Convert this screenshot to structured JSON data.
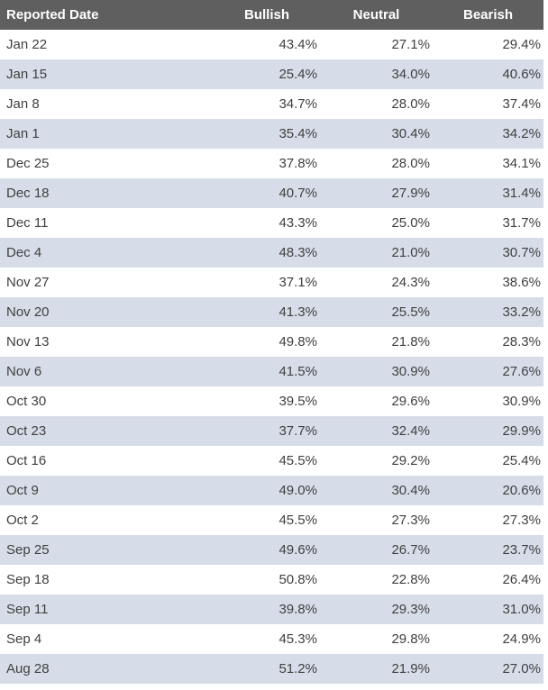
{
  "colors": {
    "header_bg": "#5f5f5f",
    "header_text": "#ffffff",
    "alt_row_bg": "#d7dde8",
    "row_bg": "#ffffff",
    "cell_text": "#3f3f3f"
  },
  "chart_data": {
    "type": "table",
    "columns": [
      "Reported Date",
      "Bullish",
      "Neutral",
      "Bearish"
    ],
    "value_format": "percent_one_decimal",
    "layout": {
      "alternating_rows": true,
      "header_style": "dark-gray-white-bold",
      "first_column_align": "left",
      "value_columns_align": "right"
    },
    "rows": [
      [
        "Jan 22",
        43.4,
        27.1,
        29.4
      ],
      [
        "Jan 15",
        25.4,
        34.0,
        40.6
      ],
      [
        "Jan 8",
        34.7,
        28.0,
        37.4
      ],
      [
        "Jan 1",
        35.4,
        30.4,
        34.2
      ],
      [
        "Dec 25",
        37.8,
        28.0,
        34.1
      ],
      [
        "Dec 18",
        40.7,
        27.9,
        31.4
      ],
      [
        "Dec 11",
        43.3,
        25.0,
        31.7
      ],
      [
        "Dec 4",
        48.3,
        21.0,
        30.7
      ],
      [
        "Nov 27",
        37.1,
        24.3,
        38.6
      ],
      [
        "Nov 20",
        41.3,
        25.5,
        33.2
      ],
      [
        "Nov 13",
        49.8,
        21.8,
        28.3
      ],
      [
        "Nov 6",
        41.5,
        30.9,
        27.6
      ],
      [
        "Oct 30",
        39.5,
        29.6,
        30.9
      ],
      [
        "Oct 23",
        37.7,
        32.4,
        29.9
      ],
      [
        "Oct 16",
        45.5,
        29.2,
        25.4
      ],
      [
        "Oct 9",
        49.0,
        30.4,
        20.6
      ],
      [
        "Oct 2",
        45.5,
        27.3,
        27.3
      ],
      [
        "Sep 25",
        49.6,
        26.7,
        23.7
      ],
      [
        "Sep 18",
        50.8,
        22.8,
        26.4
      ],
      [
        "Sep 11",
        39.8,
        29.3,
        31.0
      ],
      [
        "Sep 4",
        45.3,
        29.8,
        24.9
      ],
      [
        "Aug 28",
        51.2,
        21.9,
        27.0
      ]
    ]
  }
}
